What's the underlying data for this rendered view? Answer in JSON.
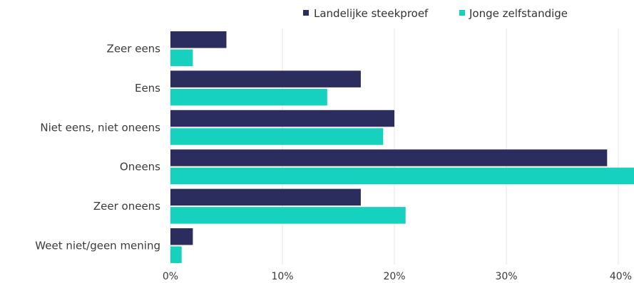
{
  "chart_data": {
    "type": "bar",
    "orientation": "horizontal",
    "categories": [
      "Zeer eens",
      "Eens",
      "Niet eens, niet oneens",
      "Oneens",
      "Zeer oneens",
      "Weet niet/geen mening"
    ],
    "series": [
      {
        "name": "Landelijke steekproef",
        "color": "#2b2d5e",
        "values": [
          5,
          17,
          20,
          39,
          17,
          2
        ]
      },
      {
        "name": "Jonge zelfstandige",
        "color": "#17d1bf",
        "values": [
          2,
          14,
          19,
          42,
          21,
          1
        ]
      }
    ],
    "x_ticks": [
      "0%",
      "10%",
      "20%",
      "30%",
      "40%"
    ],
    "x_tick_values": [
      0,
      10,
      20,
      30,
      40
    ],
    "xlim": [
      0,
      41.4
    ],
    "grid": "vertical",
    "legend_position": "top-right"
  }
}
